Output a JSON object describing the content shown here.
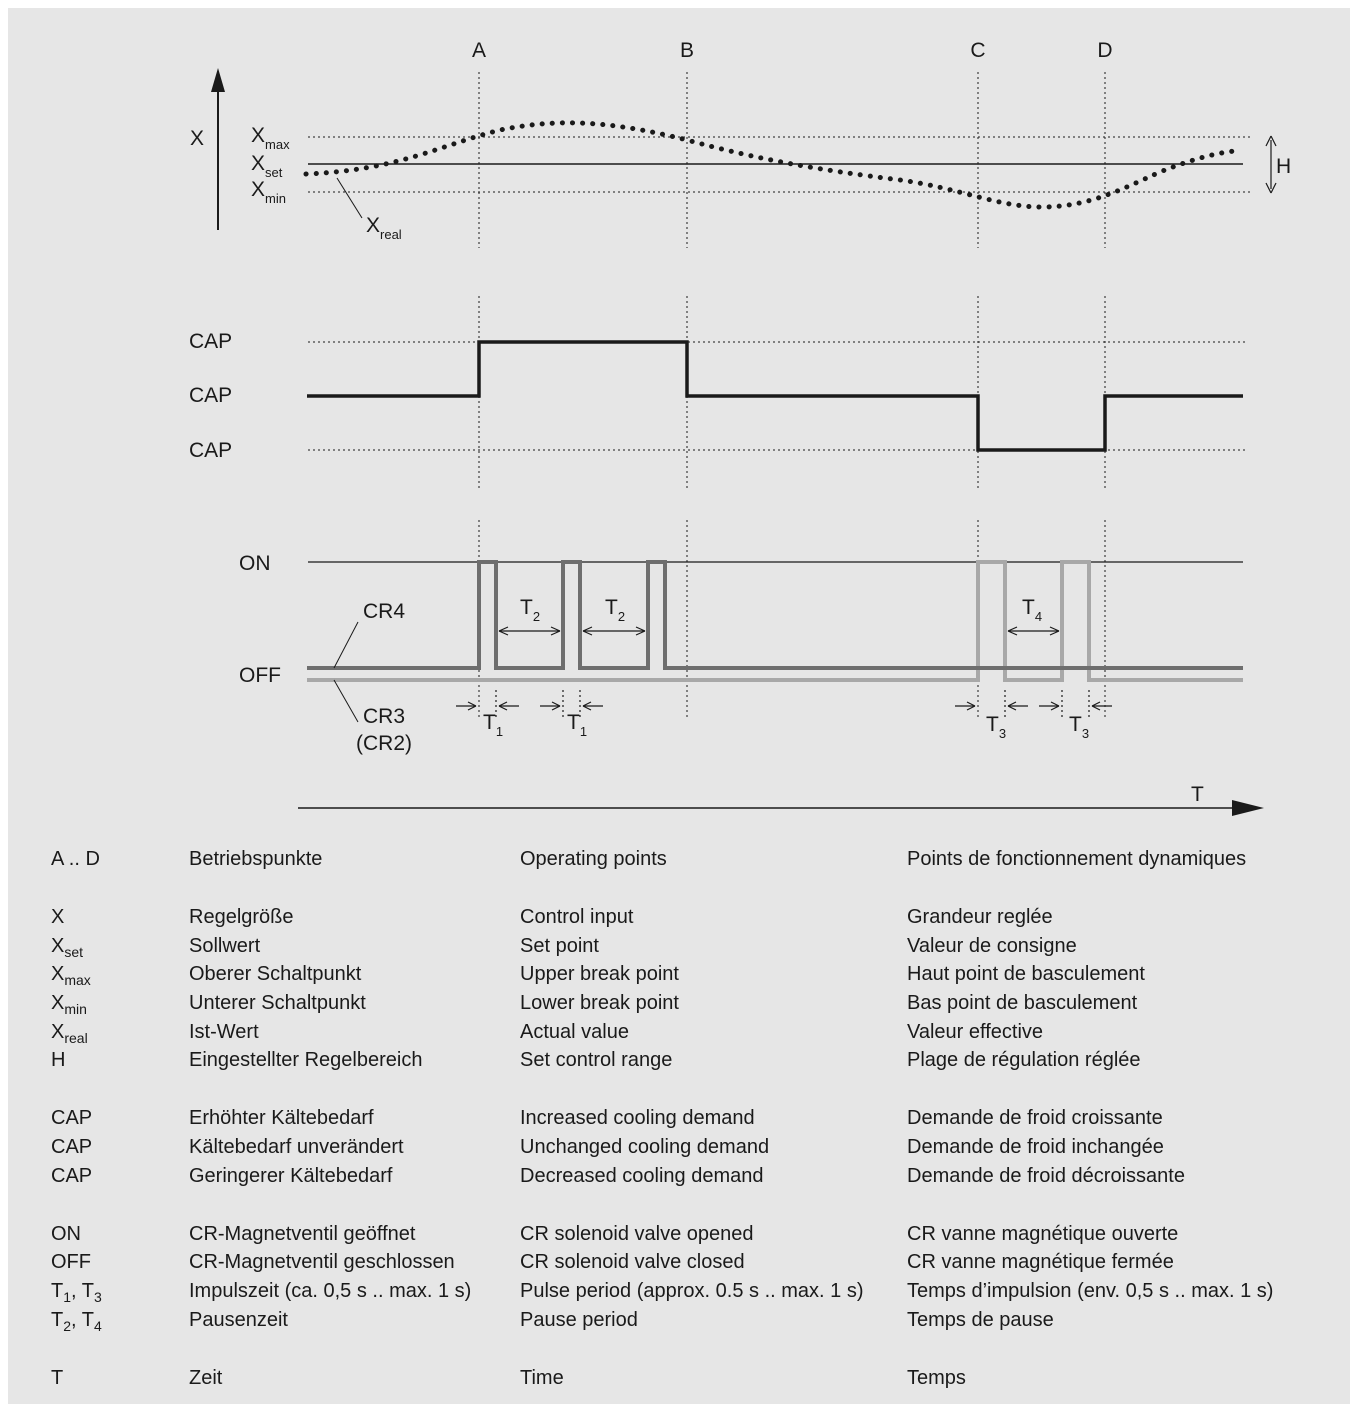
{
  "diagram": {
    "points": [
      "A",
      "B",
      "C",
      "D"
    ],
    "x_axis_label": "X",
    "x_max": {
      "base": "X",
      "sub": "max"
    },
    "x_set": {
      "base": "X",
      "sub": "set"
    },
    "x_min": {
      "base": "X",
      "sub": "min"
    },
    "x_real": {
      "base": "X",
      "sub": "real"
    },
    "h_label": "H",
    "cap_labels": [
      "CAP",
      "CAP",
      "CAP"
    ],
    "on_label": "ON",
    "off_label": "OFF",
    "cr4_label": "CR4",
    "cr3_label": "CR3",
    "cr2_label": "(CR2)",
    "t1": {
      "base": "T",
      "sub": "1"
    },
    "t2": {
      "base": "T",
      "sub": "2"
    },
    "t3": {
      "base": "T",
      "sub": "3"
    },
    "t4": {
      "base": "T",
      "sub": "4"
    },
    "time_label": "T",
    "colors": {
      "background": "#e6e6e6",
      "line": "#1a1a1a",
      "cr4": "#6e6e6e",
      "cr3": "#a8a8a8"
    }
  },
  "legend": {
    "rows": [
      {
        "sym": "A .. D",
        "de": "Betriebspunkte",
        "en": "Operating points",
        "fr": "Points de fonctionnement dynamiques"
      },
      {
        "sym": "X",
        "de": "Regelgröße",
        "en": "Control input",
        "fr": "Grandeur reglée"
      },
      {
        "sym_base": "X",
        "sym_sub": "set",
        "de": "Sollwert",
        "en": "Set point",
        "fr": "Valeur de consigne"
      },
      {
        "sym_base": "X",
        "sym_sub": "max",
        "de": "Oberer Schaltpunkt",
        "en": "Upper break point",
        "fr": "Haut point de basculement"
      },
      {
        "sym_base": "X",
        "sym_sub": "min",
        "de": "Unterer Schaltpunkt",
        "en": "Lower break point",
        "fr": "Bas point de basculement"
      },
      {
        "sym_base": "X",
        "sym_sub": "real",
        "de": "Ist-Wert",
        "en": "Actual value",
        "fr": "Valeur effective"
      },
      {
        "sym": "H",
        "de": "Eingestellter Regelbereich",
        "en": "Set control range",
        "fr": "Plage de régulation réglée"
      },
      {
        "sym": "CAP",
        "de": "Erhöhter Kältebedarf",
        "en": "Increased cooling demand",
        "fr": "Demande de froid croissante"
      },
      {
        "sym": "CAP",
        "de": "Kältebedarf unverändert",
        "en": "Unchanged cooling demand",
        "fr": "Demande de froid inchangée"
      },
      {
        "sym": "CAP",
        "de": "Geringerer Kältebedarf",
        "en": "Decreased cooling demand",
        "fr": "Demande de froid décroissante"
      },
      {
        "sym": "ON",
        "de": "CR-Magnetventil geöffnet",
        "en": "CR solenoid valve opened",
        "fr": "CR vanne magnétique ouverte"
      },
      {
        "sym": "OFF",
        "de": "CR-Magnetventil geschlossen",
        "en": "CR solenoid valve closed",
        "fr": "CR vanne magnétique fermée"
      },
      {
        "sym_base1": "T",
        "sym_sub1": "1",
        "sym_sep": ", ",
        "sym_base2": "T",
        "sym_sub2": "3",
        "de": "Impulszeit (ca. 0,5 s .. max. 1 s)",
        "en": "Pulse period (approx. 0.5 s .. max. 1 s)",
        "fr": "Temps d’impulsion (env. 0,5 s .. max. 1 s)"
      },
      {
        "sym_base1": "T",
        "sym_sub1": "2",
        "sym_sep": ", ",
        "sym_base2": "T",
        "sym_sub2": "4",
        "de": "Pausenzeit",
        "en": "Pause period",
        "fr": "Temps de pause"
      },
      {
        "sym": "T",
        "de": "Zeit",
        "en": "Time",
        "fr": "Temps"
      }
    ]
  }
}
